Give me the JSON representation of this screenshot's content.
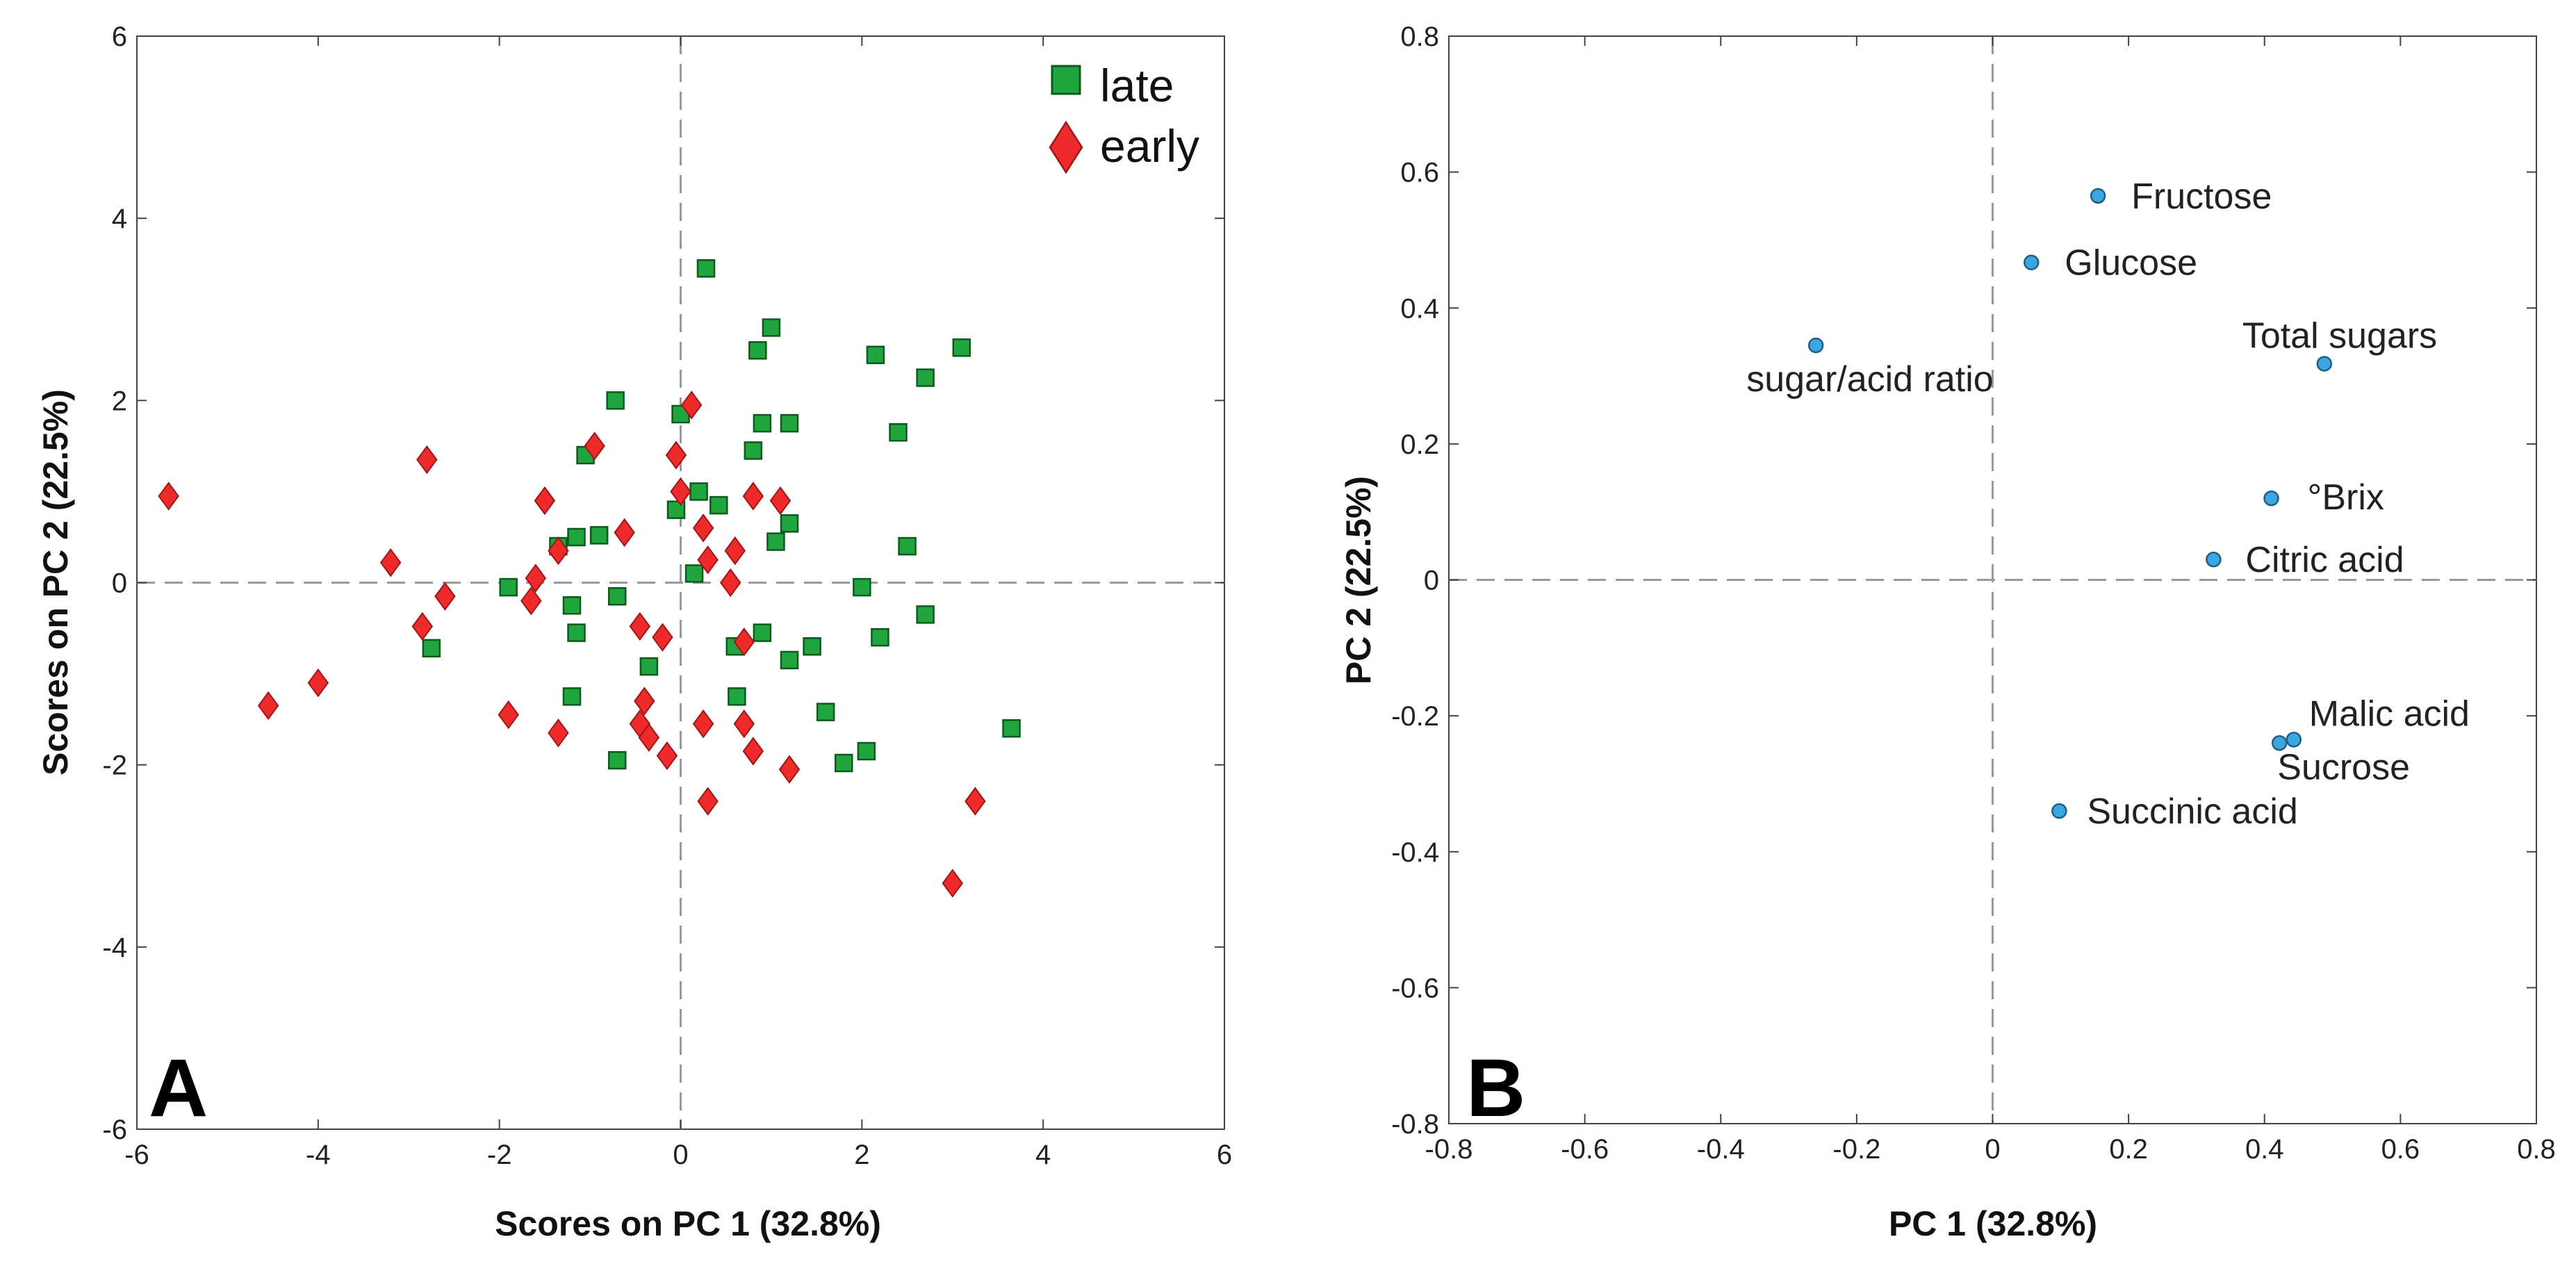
{
  "chart_data": [
    {
      "type": "scatter",
      "panel_label": "A",
      "xlabel": "Scores on PC 1 (32.8%)",
      "ylabel": "Scores on PC 2 (22.5%)",
      "xlim": [
        -6,
        6
      ],
      "ylim": [
        -6,
        6
      ],
      "xticks": [
        -6,
        -4,
        -2,
        0,
        2,
        4,
        6
      ],
      "yticks": [
        -6,
        -4,
        -2,
        0,
        2,
        4,
        6
      ],
      "xtick_labels": [
        "-6",
        "-4",
        "-2",
        "0",
        "2",
        "4",
        "6"
      ],
      "ytick_labels": [
        "-6",
        "-4",
        "-2",
        "0",
        "2",
        "4",
        "6"
      ],
      "legend_position": "top-right",
      "series": [
        {
          "name": "late",
          "marker": "square",
          "color": "#1fa63f",
          "points": [
            [
              0.28,
              3.45
            ],
            [
              1.0,
              2.8
            ],
            [
              0.85,
              2.55
            ],
            [
              2.15,
              2.5
            ],
            [
              3.1,
              2.58
            ],
            [
              2.7,
              2.25
            ],
            [
              -0.72,
              2.0
            ],
            [
              0.0,
              1.85
            ],
            [
              0.9,
              1.75
            ],
            [
              1.2,
              1.75
            ],
            [
              2.4,
              1.65
            ],
            [
              0.8,
              1.45
            ],
            [
              -1.05,
              1.4
            ],
            [
              0.2,
              1.0
            ],
            [
              0.42,
              0.85
            ],
            [
              -0.05,
              0.8
            ],
            [
              1.2,
              0.65
            ],
            [
              -1.15,
              0.5
            ],
            [
              -0.9,
              0.52
            ],
            [
              1.05,
              0.45
            ],
            [
              2.5,
              0.4
            ],
            [
              -1.35,
              0.4
            ],
            [
              0.15,
              0.1
            ],
            [
              -1.9,
              -0.05
            ],
            [
              2.0,
              -0.05
            ],
            [
              -0.7,
              -0.15
            ],
            [
              -1.2,
              -0.25
            ],
            [
              2.7,
              -0.35
            ],
            [
              -1.15,
              -0.55
            ],
            [
              0.9,
              -0.55
            ],
            [
              2.2,
              -0.6
            ],
            [
              0.6,
              -0.7
            ],
            [
              1.45,
              -0.7
            ],
            [
              -2.75,
              -0.72
            ],
            [
              1.2,
              -0.85
            ],
            [
              -0.35,
              -0.92
            ],
            [
              -1.2,
              -1.25
            ],
            [
              0.62,
              -1.25
            ],
            [
              1.6,
              -1.42
            ],
            [
              3.65,
              -1.6
            ],
            [
              2.05,
              -1.85
            ],
            [
              -0.7,
              -1.95
            ],
            [
              1.8,
              -1.98
            ]
          ]
        },
        {
          "name": "early",
          "marker": "diamond",
          "color": "#ee2a2a",
          "points": [
            [
              -5.65,
              0.95
            ],
            [
              -2.8,
              1.35
            ],
            [
              -0.95,
              1.5
            ],
            [
              0.12,
              1.95
            ],
            [
              -0.05,
              1.4
            ],
            [
              -1.5,
              0.9
            ],
            [
              0.8,
              0.95
            ],
            [
              1.1,
              0.9
            ],
            [
              0.0,
              1.0
            ],
            [
              0.25,
              0.6
            ],
            [
              -0.62,
              0.55
            ],
            [
              -1.35,
              0.35
            ],
            [
              0.6,
              0.35
            ],
            [
              -3.2,
              0.22
            ],
            [
              0.3,
              0.25
            ],
            [
              -1.6,
              0.05
            ],
            [
              0.55,
              0.0
            ],
            [
              -2.6,
              -0.15
            ],
            [
              -1.65,
              -0.2
            ],
            [
              -2.85,
              -0.48
            ],
            [
              -0.45,
              -0.48
            ],
            [
              -0.2,
              -0.6
            ],
            [
              0.7,
              -0.65
            ],
            [
              -4.0,
              -1.1
            ],
            [
              -4.55,
              -1.35
            ],
            [
              -1.9,
              -1.45
            ],
            [
              -0.4,
              -1.3
            ],
            [
              -0.45,
              -1.55
            ],
            [
              -1.35,
              -1.65
            ],
            [
              -0.35,
              -1.7
            ],
            [
              0.25,
              -1.55
            ],
            [
              0.7,
              -1.55
            ],
            [
              -0.15,
              -1.9
            ],
            [
              0.8,
              -1.85
            ],
            [
              1.2,
              -2.05
            ],
            [
              0.3,
              -2.4
            ],
            [
              3.25,
              -2.4
            ],
            [
              3.0,
              -3.3
            ]
          ]
        }
      ]
    },
    {
      "type": "scatter",
      "panel_label": "B",
      "xlabel": "PC 1 (32.8%)",
      "ylabel": "PC 2 (22.5%)",
      "xlim": [
        -0.8,
        0.8
      ],
      "ylim": [
        -0.8,
        0.8
      ],
      "xticks": [
        -0.8,
        -0.6,
        -0.4,
        -0.2,
        0,
        0.2,
        0.4,
        0.6,
        0.8
      ],
      "yticks": [
        -0.8,
        -0.6,
        -0.4,
        -0.2,
        0,
        0.2,
        0.4,
        0.6,
        0.8
      ],
      "xtick_labels": [
        "-0.8",
        "-0.6",
        "-0.4",
        "-0.2",
        "0",
        "0.2",
        "0.4",
        "0.6",
        "0.8"
      ],
      "ytick_labels": [
        "-0.8",
        "-0.6",
        "-0.4",
        "-0.2",
        "0",
        "0.2",
        "0.4",
        "0.6",
        "0.8"
      ],
      "marker_color": "#3aa7e0",
      "points": [
        {
          "label": "Fructose",
          "x": 0.155,
          "y": 0.565
        },
        {
          "label": "Glucose",
          "x": 0.057,
          "y": 0.467
        },
        {
          "label": "sugar/acid ratio",
          "x": -0.26,
          "y": 0.345
        },
        {
          "label": "Total sugars",
          "x": 0.488,
          "y": 0.318
        },
        {
          "label": "°Brix",
          "x": 0.41,
          "y": 0.12
        },
        {
          "label": "Citric acid",
          "x": 0.325,
          "y": 0.03
        },
        {
          "label": "Malic acid",
          "x": 0.443,
          "y": -0.235
        },
        {
          "label": "Sucrose",
          "x": 0.422,
          "y": -0.24
        },
        {
          "label": "Succinic acid",
          "x": 0.098,
          "y": -0.34
        }
      ]
    }
  ]
}
